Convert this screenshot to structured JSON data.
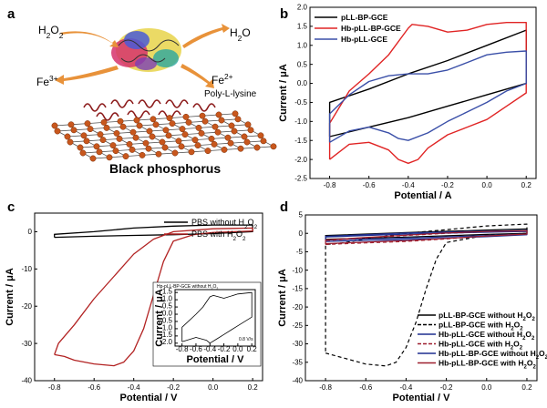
{
  "panels": {
    "a": {
      "label": "a",
      "h2o2": "H2O2",
      "h2o": "H2O",
      "fe3": "Fe3+",
      "fe2": "Fe2+",
      "polylysine": "Poly-L-lysine",
      "title": "Black phosphorus"
    },
    "b": {
      "label": "b"
    },
    "c": {
      "label": "c"
    },
    "d": {
      "label": "d"
    }
  },
  "chart_data": [
    {
      "panel": "b",
      "type": "line",
      "xlabel": "Potential / A",
      "ylabel": "Current / μA",
      "xlim": [
        -0.9,
        0.25
      ],
      "ylim": [
        -2.5,
        2.0
      ],
      "xticks": [
        -0.8,
        -0.6,
        -0.4,
        -0.2,
        0.0,
        0.2
      ],
      "xtick_labels": [
        "-0.8",
        "-0.6",
        "-0.4",
        "-0.2",
        "0.0",
        "0.2"
      ],
      "yticks": [
        -2.5,
        -2.0,
        -1.5,
        -1.0,
        -0.5,
        0.0,
        0.5,
        1.0,
        1.5,
        2.0
      ],
      "ytick_labels": [
        "-2.5",
        "-2.0",
        "-1.5",
        "-1.0",
        "-0.5",
        "0.0",
        "0.5",
        "1.0",
        "1.5",
        "2.0"
      ],
      "legend_position": "top-left",
      "series": [
        {
          "name": "pLL-BP-GCE",
          "color": "#000000",
          "style": "solid",
          "x": [
            -0.8,
            -0.6,
            -0.4,
            -0.2,
            0.0,
            0.2,
            0.2,
            0.0,
            -0.2,
            -0.4,
            -0.6,
            -0.8,
            -0.8
          ],
          "y": [
            -1.4,
            -1.15,
            -0.9,
            -0.6,
            -0.3,
            0.0,
            1.4,
            1.0,
            0.6,
            0.25,
            -0.15,
            -0.5,
            -1.4
          ]
        },
        {
          "name": "Hb-pLL-BP-GCE",
          "color": "#e02424",
          "style": "solid",
          "x": [
            -0.8,
            -0.7,
            -0.6,
            -0.5,
            -0.45,
            -0.4,
            -0.35,
            -0.3,
            -0.2,
            -0.1,
            0.0,
            0.1,
            0.2,
            0.2,
            0.1,
            0.0,
            -0.1,
            -0.2,
            -0.3,
            -0.38,
            -0.4,
            -0.5,
            -0.6,
            -0.7,
            -0.8,
            -0.8
          ],
          "y": [
            -2.0,
            -1.6,
            -1.55,
            -1.75,
            -2.0,
            -2.1,
            -2.0,
            -1.7,
            -1.35,
            -1.15,
            -0.95,
            -0.6,
            -0.25,
            1.6,
            1.6,
            1.55,
            1.4,
            1.35,
            1.5,
            1.55,
            1.45,
            0.75,
            0.25,
            -0.2,
            -1.05,
            -2.0
          ]
        },
        {
          "name": "Hb-pLL-GCE",
          "color": "#3a4fa8",
          "style": "solid",
          "x": [
            -0.8,
            -0.7,
            -0.6,
            -0.5,
            -0.45,
            -0.4,
            -0.3,
            -0.2,
            -0.1,
            0.0,
            0.1,
            0.2,
            0.2,
            0.1,
            0.0,
            -0.1,
            -0.2,
            -0.3,
            -0.4,
            -0.5,
            -0.6,
            -0.7,
            -0.8,
            -0.8
          ],
          "y": [
            -1.55,
            -1.25,
            -1.15,
            -1.3,
            -1.45,
            -1.5,
            -1.3,
            -1.0,
            -0.75,
            -0.5,
            -0.2,
            0.0,
            0.85,
            0.82,
            0.75,
            0.55,
            0.35,
            0.25,
            0.25,
            0.2,
            0.05,
            -0.3,
            -0.8,
            -1.55
          ]
        }
      ]
    },
    {
      "panel": "c",
      "type": "line",
      "xlabel": "Potential / V",
      "ylabel": "Current / μA",
      "xlim": [
        -0.9,
        0.25
      ],
      "ylim": [
        -40,
        5
      ],
      "xticks": [
        -0.8,
        -0.6,
        -0.4,
        -0.2,
        0.0,
        0.2
      ],
      "xtick_labels": [
        "-0.8",
        "-0.6",
        "-0.4",
        "-0.2",
        "0.0",
        "0.2"
      ],
      "yticks": [
        -40,
        -30,
        -20,
        -10,
        0
      ],
      "ytick_labels": [
        "-40",
        "-30",
        "-20",
        "-10",
        "0"
      ],
      "legend_position": "top-right",
      "series": [
        {
          "name": "PBS without H2O2",
          "color": "#000000",
          "style": "solid",
          "x": [
            -0.8,
            -0.6,
            -0.4,
            -0.2,
            0.0,
            0.2,
            0.2,
            0.0,
            -0.2,
            -0.4,
            -0.6,
            -0.8,
            -0.8
          ],
          "y": [
            -1.5,
            -1.2,
            -1.0,
            -0.8,
            -0.5,
            0.0,
            1.8,
            1.8,
            1.5,
            1.0,
            0.0,
            -0.7,
            -1.5
          ]
        },
        {
          "name": "PBS with H2O2",
          "color": "#b22222",
          "style": "solid",
          "x": [
            -0.8,
            -0.75,
            -0.7,
            -0.6,
            -0.5,
            -0.45,
            -0.4,
            -0.35,
            -0.3,
            -0.25,
            -0.2,
            -0.1,
            0.0,
            0.2,
            0.2,
            0.0,
            -0.2,
            -0.3,
            -0.4,
            -0.5,
            -0.6,
            -0.7,
            -0.78,
            -0.8
          ],
          "y": [
            -33,
            -33.5,
            -34.5,
            -35.5,
            -36,
            -35,
            -32,
            -26,
            -17,
            -8,
            -2.5,
            -0.8,
            -0.2,
            0.2,
            1.0,
            0.8,
            0.0,
            -2,
            -6,
            -12,
            -18,
            -25,
            -30,
            -33
          ]
        }
      ],
      "inset": {
        "legend": "Hp-pLL-BP-GCE without H2O2",
        "xlabel": "Potential / V",
        "ylabel": "Current / μA",
        "xticks": [
          -0.8,
          -0.6,
          -0.4,
          -0.2,
          0.0,
          0.2
        ],
        "xtick_labels": [
          "-0.8",
          "-0.6",
          "-0.4",
          "-0.2",
          "0.0",
          "0.2"
        ],
        "yticks": [
          -2.0,
          -1.5,
          -1.0,
          -0.5,
          0.0,
          0.5,
          1.0,
          1.5
        ],
        "ytick_labels": [
          "-2.0",
          "-1.5",
          "-1.0",
          "-0.5",
          "0.0",
          "0.5",
          "1.0",
          "1.5"
        ],
        "note": "0.8 V/s",
        "xlim": [
          -0.9,
          0.25
        ],
        "ylim": [
          -2.2,
          1.7
        ],
        "series": {
          "color": "#000000",
          "x": [
            -0.8,
            -0.6,
            -0.45,
            -0.4,
            -0.3,
            -0.2,
            0.0,
            0.2,
            0.2,
            0.0,
            -0.2,
            -0.35,
            -0.4,
            -0.5,
            -0.6,
            -0.8,
            -0.8
          ],
          "y": [
            -1.9,
            -1.6,
            -1.8,
            -2.0,
            -1.7,
            -1.4,
            -0.8,
            -0.2,
            1.5,
            1.4,
            1.1,
            1.3,
            1.2,
            0.5,
            0.0,
            -0.9,
            -1.9
          ]
        }
      }
    },
    {
      "panel": "d",
      "type": "line",
      "xlabel": "Potential / V",
      "ylabel": "Current / μA",
      "xlim": [
        -0.9,
        0.25
      ],
      "ylim": [
        -40,
        5
      ],
      "xticks": [
        -0.8,
        -0.6,
        -0.4,
        -0.2,
        0.0,
        0.2
      ],
      "xtick_labels": [
        "-0.8",
        "-0.6",
        "-0.4",
        "-0.2",
        "0.0",
        "0.2"
      ],
      "yticks": [
        -40,
        -35,
        -30,
        -25,
        -20,
        -15,
        -10,
        -5,
        0,
        5
      ],
      "ytick_labels": [
        "-40",
        "-35",
        "-30",
        "-25",
        "-20",
        "-15",
        "-10",
        "-5",
        "0",
        "5"
      ],
      "legend_position": "bottom-right",
      "series": [
        {
          "name": "pLL-BP-GCE without H2O2",
          "color": "#000000",
          "style": "solid",
          "x": [
            -0.8,
            -0.4,
            0.0,
            0.2,
            0.2,
            0.0,
            -0.4,
            -0.8,
            -0.8
          ],
          "y": [
            -1.6,
            -1.0,
            -0.3,
            0.0,
            1.2,
            0.9,
            0.2,
            -0.6,
            -1.6
          ]
        },
        {
          "name": "pLL-BP-GCE with H2O2",
          "color": "#000000",
          "style": "dashed",
          "x": [
            -0.8,
            -0.7,
            -0.6,
            -0.5,
            -0.45,
            -0.4,
            -0.35,
            -0.3,
            -0.25,
            -0.2,
            0.0,
            0.2,
            0.2,
            0.0,
            -0.2,
            -0.4,
            -0.6,
            -0.7,
            -0.8,
            -0.8
          ],
          "y": [
            -32.5,
            -34,
            -35.5,
            -36,
            -35,
            -31,
            -24,
            -15,
            -7,
            -2.5,
            -0.5,
            0.0,
            2.5,
            2.0,
            1.0,
            0.0,
            -1.5,
            -2.5,
            -3.0,
            -32.5
          ]
        },
        {
          "name": "Hb-pLL-GCE without H2O2",
          "color": "#1f2f8f",
          "style": "solid",
          "x": [
            -0.8,
            -0.4,
            0.0,
            0.2,
            0.2,
            0.0,
            -0.4,
            -0.8,
            -0.8
          ],
          "y": [
            -1.8,
            -1.3,
            -0.6,
            -0.2,
            0.8,
            0.6,
            0.1,
            -0.8,
            -1.8
          ]
        },
        {
          "name": "Hb-pLL-GCE with H2O2",
          "color": "#9e1f2f",
          "style": "dashed",
          "x": [
            -0.8,
            -0.6,
            -0.4,
            -0.2,
            0.0,
            0.2,
            0.2,
            0.0,
            -0.2,
            -0.4,
            -0.6,
            -0.8,
            -0.8
          ],
          "y": [
            -3.0,
            -2.6,
            -2.2,
            -1.5,
            -0.8,
            -0.3,
            0.6,
            0.4,
            0.0,
            -0.6,
            -1.2,
            -2.0,
            -3.0
          ]
        },
        {
          "name": "Hb-pLL-BP-GCE without H2O2",
          "color": "#1f2f8f",
          "style": "solid",
          "x": [
            -0.8,
            -0.4,
            0.0,
            0.2,
            0.2,
            0.0,
            -0.4,
            -0.8,
            -0.8
          ],
          "y": [
            -2.2,
            -1.7,
            -0.9,
            -0.4,
            0.5,
            0.3,
            -0.2,
            -1.0,
            -2.2
          ]
        },
        {
          "name": "Hb-pLL-BP-GCE with H2O2",
          "color": "#9e1f2f",
          "style": "solid",
          "x": [
            -0.8,
            -0.6,
            -0.4,
            -0.2,
            0.0,
            0.2,
            0.2,
            0.0,
            -0.2,
            -0.4,
            -0.6,
            -0.8,
            -0.8
          ],
          "y": [
            -2.8,
            -2.4,
            -2.0,
            -1.4,
            -0.7,
            -0.2,
            0.7,
            0.5,
            0.1,
            -0.5,
            -1.1,
            -1.8,
            -2.8
          ]
        }
      ]
    }
  ]
}
